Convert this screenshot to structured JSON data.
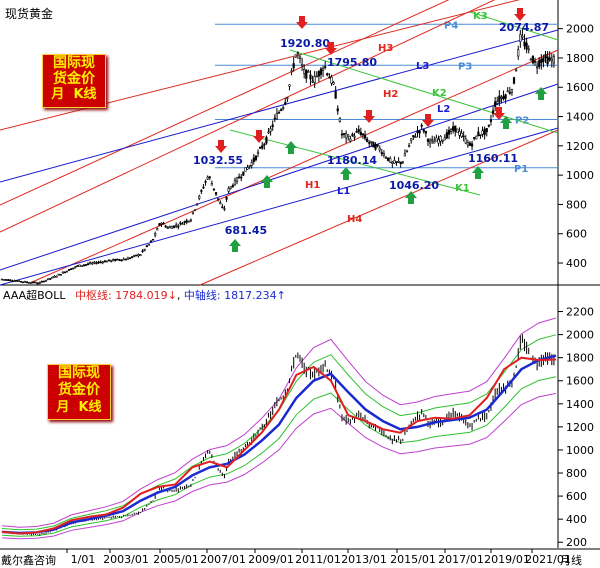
{
  "window": {
    "title": "现货黄金"
  },
  "badge": {
    "lines": [
      "国际现",
      "货金价",
      "月  K线"
    ]
  },
  "lower_header": {
    "indicator": "AAA超BOLL",
    "mid_label": "中枢线:",
    "mid_value": "1784.019",
    "mid_arrow": "↓",
    "axis_label": "中轴线:",
    "axis_value": "1817.234",
    "axis_arrow": "↑",
    "sep": ","
  },
  "footer": {
    "vendor": "戴尔鑫咨询",
    "period": "月线",
    "dates": [
      "1/01",
      "2003/01",
      "2005/01",
      "2007/01",
      "2009/01",
      "2011/01",
      "2013/01",
      "2015/01",
      "2017/01",
      "2019/01",
      "2021/01"
    ]
  },
  "colors": {
    "price_line": "#000000",
    "red_channel": "#e0281e",
    "blue_channel": "#1a1ad0",
    "green_channel": "#3cc43c",
    "level_line": "#4a8cd8",
    "mid_line": "#e02020",
    "axis_line": "#1a2ad0",
    "band_inner": "#30c030",
    "band_outer": "#c040d0",
    "up_arrow": "#20a040",
    "down_arrow": "#e02020"
  },
  "chart_data": [
    {
      "type": "line",
      "panel": "upper",
      "ylim": [
        250,
        2100
      ],
      "yticks": [
        400,
        600,
        800,
        1000,
        1200,
        1400,
        1600,
        1800,
        2000
      ],
      "price": {
        "x": [
          2000.0,
          2001.0,
          2001.5,
          2002.0,
          2003.0,
          2004.0,
          2005.0,
          2005.5,
          2006.0,
          2006.3,
          2006.6,
          2007.0,
          2007.5,
          2008.0,
          2008.2,
          2008.8,
          2009.0,
          2009.5,
          2010.0,
          2010.5,
          2010.9,
          2011.3,
          2011.7,
          2012.0,
          2012.4,
          2012.8,
          2013.2,
          2013.5,
          2013.8,
          2014.2,
          2014.6,
          2015.0,
          2015.5,
          2015.9,
          2016.3,
          2016.7,
          2017.0,
          2017.5,
          2018.0,
          2018.6,
          2018.9,
          2019.3,
          2019.6,
          2020.0,
          2020.3,
          2020.6,
          2020.9,
          2021.2,
          2021.5,
          2021.8,
          2022.0
        ],
        "y": [
          290,
          270,
          265,
          300,
          380,
          410,
          430,
          460,
          560,
          680,
          640,
          660,
          700,
          920,
          1000,
          750,
          900,
          1000,
          1100,
          1240,
          1400,
          1520,
          1850,
          1700,
          1650,
          1750,
          1600,
          1280,
          1250,
          1300,
          1220,
          1180,
          1080,
          1090,
          1250,
          1330,
          1220,
          1250,
          1320,
          1200,
          1280,
          1300,
          1500,
          1550,
          1600,
          1950,
          1850,
          1750,
          1800,
          1780,
          1800
        ]
      },
      "labels": [
        {
          "text": "1920.80",
          "x": 2011.7,
          "y": 1920.8
        },
        {
          "text": "1795.80",
          "x": 2012.7,
          "y": 1795.8
        },
        {
          "text": "1032.55",
          "x": 2008.1,
          "y": 1032.55
        },
        {
          "text": "1180.14",
          "x": 2013.9,
          "y": 1180.14
        },
        {
          "text": "1160.11",
          "x": 2018.4,
          "y": 1160.11
        },
        {
          "text": "1046.20",
          "x": 2015.9,
          "y": 1046.2
        },
        {
          "text": "681.45",
          "x": 2008.8,
          "y": 681.45
        },
        {
          "text": "2074.87",
          "x": 2020.6,
          "y": 2074.87
        }
      ],
      "levels": [
        {
          "name": "P4",
          "y": 2030
        },
        {
          "name": "P3",
          "y": 1750
        },
        {
          "name": "P2",
          "y": 1380
        },
        {
          "name": "P1",
          "y": 1050
        }
      ],
      "channel_labels": [
        "H1",
        "H2",
        "H3",
        "H4",
        "L1",
        "L2",
        "L3",
        "K1",
        "K2",
        "K3"
      ]
    },
    {
      "type": "line",
      "panel": "lower",
      "ylim": [
        150,
        2300
      ],
      "yticks": [
        200,
        400,
        600,
        800,
        1000,
        1200,
        1400,
        1600,
        1800,
        2000,
        2200
      ],
      "series": [
        {
          "name": "中枢线",
          "values": [
            290,
            275,
            285,
            320,
            390,
            420,
            440,
            500,
            620,
            680,
            700,
            850,
            900,
            850,
            1000,
            1150,
            1350,
            1650,
            1720,
            1600,
            1300,
            1250,
            1180,
            1150,
            1250,
            1280,
            1270,
            1300,
            1450,
            1700,
            1800,
            1780,
            1784
          ]
        },
        {
          "name": "中轴线",
          "values": [
            290,
            280,
            285,
            310,
            370,
            400,
            430,
            470,
            560,
            630,
            680,
            780,
            850,
            880,
            960,
            1080,
            1220,
            1450,
            1600,
            1660,
            1500,
            1350,
            1250,
            1180,
            1200,
            1240,
            1260,
            1280,
            1350,
            1520,
            1700,
            1780,
            1817
          ]
        }
      ]
    }
  ]
}
